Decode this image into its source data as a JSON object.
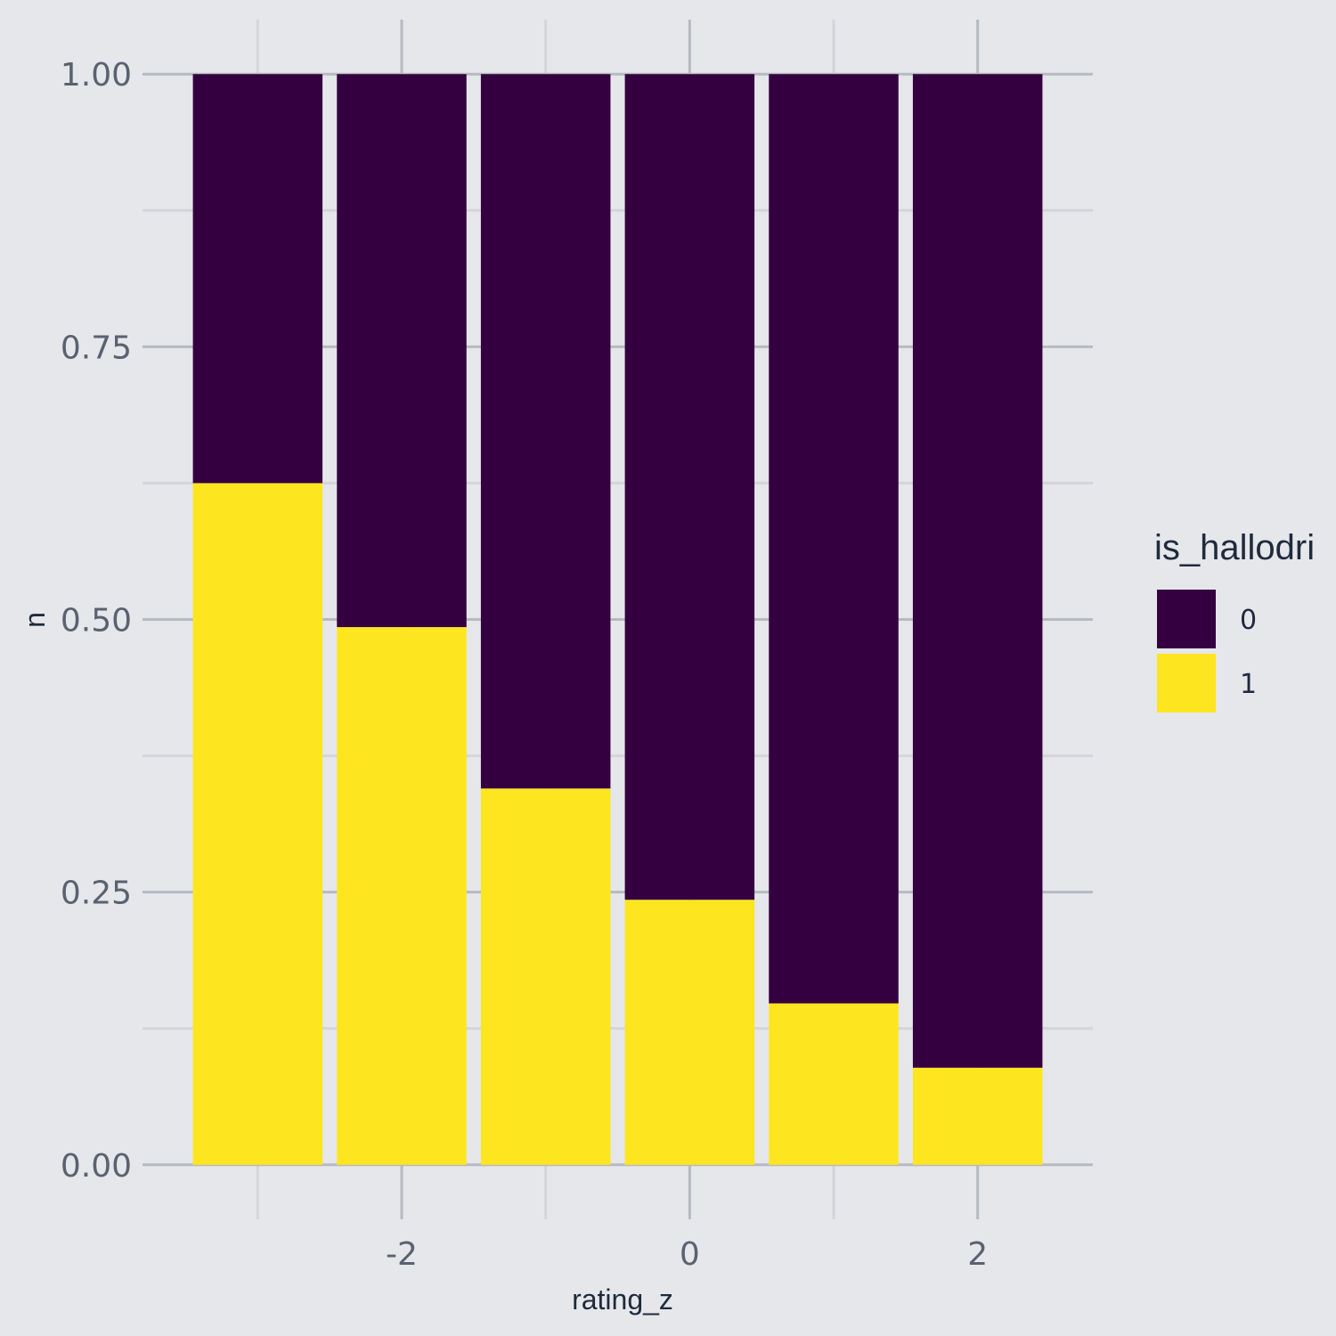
{
  "chart_data": {
    "type": "bar",
    "stacking": "fill",
    "xlabel": "rating_z",
    "ylabel": "n",
    "x": [
      -3,
      -2,
      -1,
      0,
      1,
      2
    ],
    "xlim": [
      -3.8,
      2.8
    ],
    "ylim": [
      -0.05,
      1.05
    ],
    "x_ticks": [
      -2,
      0,
      2
    ],
    "x_tick_labels": [
      "-2",
      "0",
      "2"
    ],
    "x_minor_ticks": [
      -3,
      -1,
      1
    ],
    "y_ticks": [
      0,
      0.25,
      0.5,
      0.75,
      1
    ],
    "y_tick_labels": [
      "0.00",
      "0.25",
      "0.50",
      "0.75",
      "1.00"
    ],
    "y_minor_ticks": [
      0.125,
      0.375,
      0.625,
      0.875
    ],
    "grid": true,
    "legend": {
      "title": "is_hallodri",
      "position": "right",
      "entries": [
        "0",
        "1"
      ]
    },
    "series": [
      {
        "name": "0",
        "color": "#35003f",
        "values": [
          0.375,
          0.507,
          0.655,
          0.757,
          0.852,
          0.911
        ]
      },
      {
        "name": "1",
        "color": "#fde620",
        "values": [
          0.625,
          0.493,
          0.345,
          0.243,
          0.148,
          0.089
        ]
      }
    ]
  },
  "colors": {
    "background": "#e5e7eb",
    "grid_major": "#b7bac2",
    "grid_minor": "#d3d5da"
  }
}
